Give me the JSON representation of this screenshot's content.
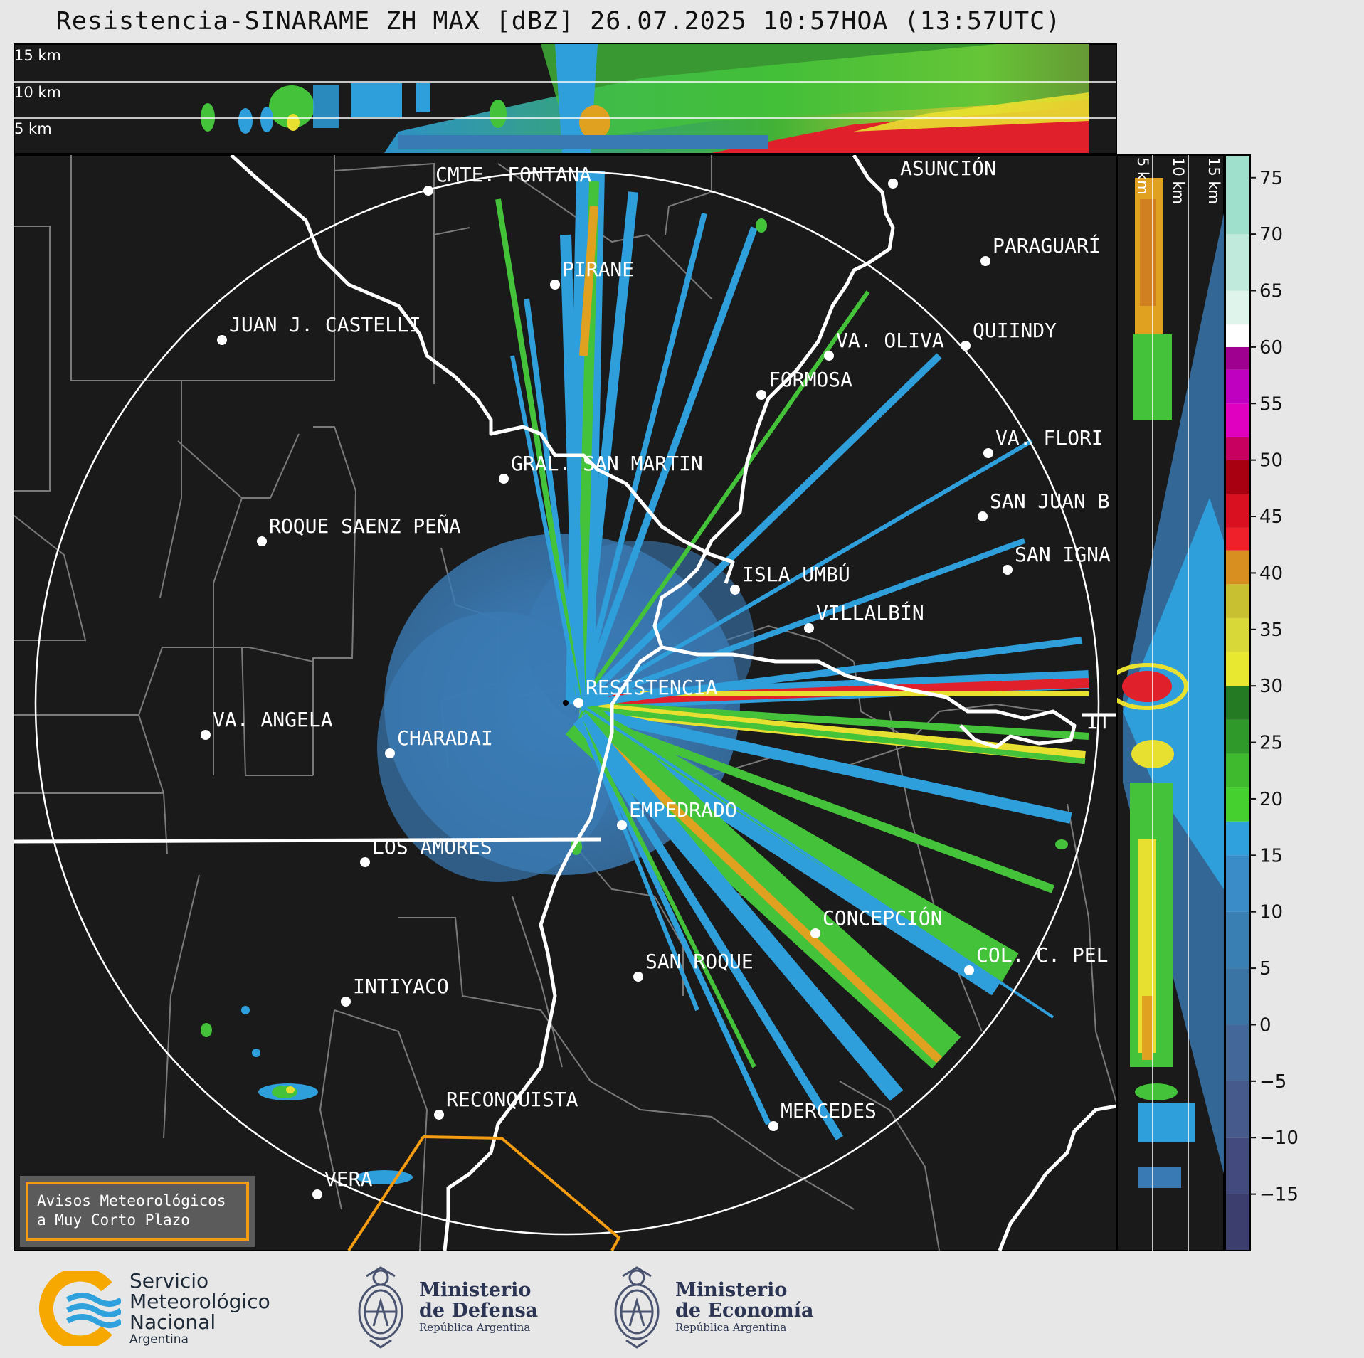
{
  "header": {
    "title": "Resistencia-SINARAME ZH MAX [dBZ] 26.07.2025 10:57HOA (13:57UTC)"
  },
  "top_panel": {
    "height_labels": [
      "15 km",
      "10 km",
      "5 km"
    ]
  },
  "side_panel": {
    "height_labels": [
      "5 km",
      "10 km",
      "15 km"
    ]
  },
  "colorbar": {
    "unit": "dBZ",
    "ticks": [
      "75",
      "70",
      "65",
      "60",
      "55",
      "50",
      "45",
      "40",
      "35",
      "30",
      "25",
      "20",
      "15",
      "10",
      "5",
      "0",
      "−5",
      "−10",
      "−15"
    ],
    "range": [
      -20,
      77
    ]
  },
  "cities": [
    {
      "name": "CMTE. FONTANA"
    },
    {
      "name": "ASUNCIÓN"
    },
    {
      "name": "PIRANE"
    },
    {
      "name": "PARAGUARÍ"
    },
    {
      "name": "JUAN J. CASTELLI"
    },
    {
      "name": "VA. OLIVA"
    },
    {
      "name": "QUIINDY"
    },
    {
      "name": "FORMOSA"
    },
    {
      "name": "VA. FLORI"
    },
    {
      "name": "GRAL. SAN MARTIN"
    },
    {
      "name": "SAN JUAN B"
    },
    {
      "name": "ROQUE SAENZ PEÑA"
    },
    {
      "name": "SAN IGNA"
    },
    {
      "name": "ISLA UMBÚ"
    },
    {
      "name": "VILLALBÍN"
    },
    {
      "name": "RESISTENCIA"
    },
    {
      "name": "VA. ANGELA"
    },
    {
      "name": "CHARADAI"
    },
    {
      "name": "IT"
    },
    {
      "name": "EMPEDRADO"
    },
    {
      "name": "LOS AMORES"
    },
    {
      "name": "CONCEPCIÓN"
    },
    {
      "name": "SAN ROQUE"
    },
    {
      "name": "COL. C. PEL"
    },
    {
      "name": "INTIYACO"
    },
    {
      "name": "RECONQUISTA"
    },
    {
      "name": "MERCEDES"
    },
    {
      "name": "VERA"
    }
  ],
  "warning_box": {
    "line1": "Avisos Meteorológicos",
    "line2": "a Muy Corto Plazo"
  },
  "logos": {
    "smn": {
      "line1": "Servicio",
      "line2": "Meteorológico",
      "line3": "Nacional",
      "sub": "Argentina"
    },
    "defensa": {
      "line1": "Ministerio",
      "line2": "de Defensa",
      "sub": "República Argentina"
    },
    "economia": {
      "line1": "Ministerio",
      "line2": "de Economía",
      "sub": "República Argentina"
    }
  },
  "colors": {
    "background": "#1a1a1a",
    "frame": "#e7e7e7",
    "warning_outline": "#f39c12",
    "smn_orange": "#f7a800",
    "smn_blue": "#2fa2dd"
  }
}
